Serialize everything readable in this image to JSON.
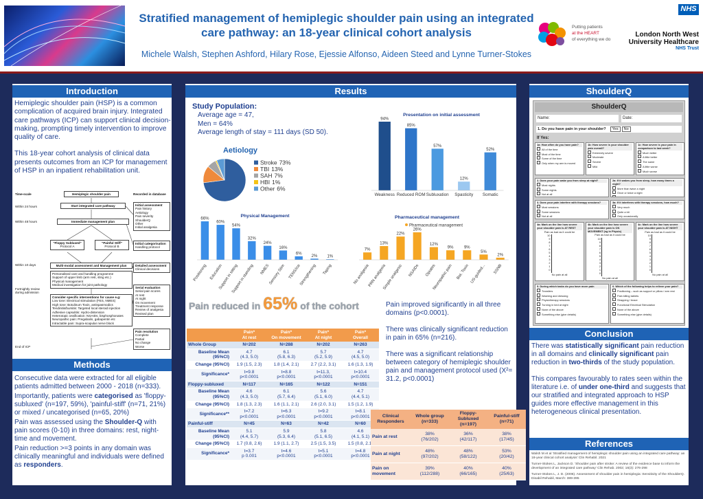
{
  "header": {
    "title": "Stratified management of hemiplegic shoulder pain using an integrated care pathway: an 18-year clinical cohort analysis",
    "authors": "Michele Walsh, Stephen Ashford, Hilary Rose, Ejessie Alfonso, Aideen Steed and Lynne Turner-Stokes",
    "logo_text": [
      "Putting patients",
      "at the HEART",
      "of everything we do"
    ],
    "nhs": "NHS",
    "trust": [
      "London North West",
      "University Healthcare",
      "NHS Trust"
    ]
  },
  "introduction": {
    "heading": "Introduction",
    "paragraphs": [
      "Hemiplegic shoulder pain (HSP) is a common complication of acquired brain injury. Integrated care pathways (ICP) can support clinical decision-making, prompting timely intervention to improve quality of care.",
      "This 18-year cohort analysis of clinical data presents outcomes from an ICP for management of HSP in an inpatient rehabilitation unit."
    ]
  },
  "flowchart": {
    "col_titles": [
      "Time-scale",
      "Recorded in database"
    ],
    "times": [
      "Within 24 hours",
      "Within 48 hours",
      "Within 10 days",
      "Fortnightly review during admission",
      "End of ICP"
    ],
    "nodes": [
      {
        "title": "Hemiplegic shoulder pain"
      },
      {
        "title": "Start integrated care pathway"
      },
      {
        "title": "Immediate management plan"
      },
      {
        "title": "\"Floppy Subluxed\"",
        "items": [
          "Protocol A"
        ]
      },
      {
        "title": "\"Painful Stiff\"",
        "items": [
          "Protocol B"
        ]
      },
      {
        "title": "Multi-modal assessment and Management plan"
      },
      {
        "items": [
          "Personalised care and handling programme",
          "Support of upper limb (arm rest, sling etc.)",
          "Physical management",
          "Medical investigation for joint pathology"
        ]
      },
      {
        "title": "Consider specific interventions for cause e.g:",
        "items": [
          "Low tone: Electrical stimulation (FES, NMES)",
          "High tone: Botulinum Toxin, antispasmodics",
          "Tendinitis/bursitis: Targeted local steroid injection",
          "Adhesive capsulitis: Hydro-distension",
          "Heterotopic ossification: NSAIDs, bisphosphonates",
          "Neuropathic pain: Pregabalin, gabapentin etc",
          "Intractable pain: Supra-scapular nerve block"
        ]
      },
      {
        "title": "Initial assessment",
        "items": [
          "Pain history",
          "Aetiology",
          "Pain severity",
          "ShoulderQ",
          "Other",
          "Initial analgesia"
        ]
      },
      {
        "title": "Initial categorisation",
        "items": [
          "Handling protocol"
        ]
      },
      {
        "title": "Detailed assessment",
        "items": [
          "Clinical decisions"
        ]
      },
      {
        "title": "Serial evaluation",
        "items": [
          "Serial pain scores",
          "At rest",
          "At night",
          "On movement",
          "Treatment response",
          "Review of analgesia",
          "Revised plan"
        ]
      },
      {
        "title": "Pain resolution",
        "items": [
          "Complete",
          "Partial",
          "No change",
          "Worse"
        ]
      }
    ]
  },
  "methods": {
    "heading": "Methods",
    "paragraphs": [
      [
        "Consecutive data were extracted for all eligible patients admitted between 2000 - 2018 (n=333)."
      ],
      [
        "Importantly,  patients were ",
        "categorised",
        " as 'floppy-subluxed' (n=197, 59%), 'painful-stiff' (n=71, 21%) or mixed / uncategorised (n=65, 20%)"
      ],
      [
        "Pain was assessed using the ",
        "Shoulder-Q",
        " with pain scores (0-10) in three domains: rest, night-time and movement."
      ],
      [
        "Pain reduction >=3 points in any domain was clinically meaningful and individuals were defined as ",
        "responders",
        "."
      ]
    ]
  },
  "results": {
    "heading": "Results",
    "population_title": "Study Population:",
    "population": [
      "Average  age = 47,",
      "Men = 64%",
      "Average length of stay = 111 days (SD 50)."
    ],
    "headline": [
      "Pain reduced  in",
      "65%",
      "of the cohort"
    ],
    "findings": [
      "Pain improved significantly in all three domains (p<0.0001).",
      "There was clinically significant reduction in pain in 65% (n=216).",
      "There was a significant relationship between category of hemiplegic shoulder pain and management protocol used (X²= 31.2, p<0.0001)"
    ]
  },
  "chart_data": [
    {
      "type": "pie",
      "title": "Aetiology",
      "categories": [
        "Stroke",
        "TBI",
        "SAH",
        "HBI",
        "Other"
      ],
      "values": [
        73,
        13,
        7,
        1,
        6
      ],
      "value_labels": [
        "73%",
        "13%",
        "7%",
        "1%",
        "6%"
      ],
      "colors": [
        "#2f5e9e",
        "#ef8a3c",
        "#a5a5a5",
        "#f4c316",
        "#5b9bd5"
      ]
    },
    {
      "type": "bar",
      "title": "Presentation on initial assessment",
      "categories": [
        "Weakness",
        "Reduced ROM",
        "Subluxation",
        "Spasticity",
        "Somatic"
      ],
      "values": [
        94,
        85,
        57,
        12,
        52
      ],
      "value_labels": [
        "94%",
        "85%",
        "57%",
        "12%",
        "52%"
      ],
      "colors": [
        "#1f4e8c",
        "#2e75c9",
        "#4b9ae0",
        "#9cc8f0",
        "#3f8ad8"
      ]
    },
    {
      "type": "bar",
      "title": "Physical Management",
      "categories": [
        "Positioning",
        "Education",
        "Support in sitting",
        "Support in standing",
        "NMES",
        "Sensory Stim",
        "TENS/ice",
        "Strengthening",
        "Taping"
      ],
      "values": [
        66,
        60,
        54,
        32,
        24,
        16,
        6,
        2,
        1
      ],
      "value_labels": [
        "66%",
        "60%",
        "54%",
        "32%",
        "24%",
        "16%",
        "6%",
        "2%",
        "1%"
      ],
      "color": "#3b8ee8"
    },
    {
      "type": "bar",
      "title": "Pharmaceutical management",
      "categories": [
        "No analgesia",
        "PRN analgesia",
        "Simple analgesic",
        "NSAIDs",
        "Opiates",
        "Neuropathic pain",
        "Bot. Toxin",
        "US-guided...",
        "SSNB"
      ],
      "series": [
        {
          "name": "Pharmaceutical management",
          "color": "#f5a623",
          "values": [
            7,
            13,
            22,
            26,
            12,
            9,
            9,
            5,
            2
          ]
        }
      ],
      "value_labels": [
        "7%",
        "13%",
        "22%",
        "26%",
        "12%",
        "9%",
        "9%",
        "5%",
        "2%"
      ]
    }
  ],
  "pain_table": {
    "header": [
      "",
      "Pain*\nAt rest",
      "Pain*\nOn movement",
      "Pain*\nAt night",
      "Pain*\nOverall"
    ],
    "rows": [
      [
        "Whole Group",
        "N=202",
        "N=288",
        "N=202",
        "N=263"
      ],
      [
        "Baseline Mean\n(95%CI)",
        "4.7\n(4.3, 5.0)",
        "6.1\n(5.8, 6.3)",
        "5.7\n(5.2, 5.9)",
        "4.7\n(4.5, 5.0)"
      ],
      [
        "Change (95%CI)",
        "1.9 (1.5, 2.3)",
        "1.8 (1.4, 2.1)",
        "2.7 (2.2, 3.1)",
        "1.6 (1.3, 1.9)"
      ],
      [
        "Significance*",
        "t=9.8\np<0.0001",
        "t=8.8\np<0.0001",
        "t=11.3,\np<0.0001",
        "t=10.4\np<0.0001"
      ],
      [
        "Floppy-subluxed",
        "N=117",
        "N=165",
        "N=122",
        "N=151"
      ],
      [
        "Baseline Mean\n(95%CI)",
        "4.6\n(4.3, 5.0)",
        "6.1\n(5.7, 6.4)",
        "5.6\n(5.1, 6.0)",
        "4.7\n(4.4, 5.1)"
      ],
      [
        "Change (95%CI)",
        "1.8 (1.3, 2.3)",
        "1.6 (1.1, 2.1)",
        "2.6 (2.0, 3.1)",
        "1.5 (1.2, 1.9)"
      ],
      [
        "Significance**",
        "t=7.2\np<0.0001",
        "t=6.3\np<0.0001",
        "t=9.2\np<0.0001",
        "t=8.1\np<0.0001"
      ],
      [
        "Painful-stiff",
        "N=45",
        "N=63",
        "N=42",
        "N=60"
      ],
      [
        "Baseline Mean\n(95%CI)",
        "5.1\n(4.4, 5.7)",
        "5.9\n(5.3, 6.4)",
        "5.8\n(5.1, 6.5)",
        "4.6\n(4.1, 5.1)"
      ],
      [
        "Change (95%CI)",
        "1.7 (0.8, 2.6)",
        "1.9 (1.1, 2.7)",
        "2.5 (1.5, 3.5)",
        "1.5 (0.8, 2.1)"
      ],
      [
        "Significance*",
        "t=3.7\np 0.001",
        "t=4.6\np<0.0001",
        "t=5.1\np<0.0001",
        "t=4.8\np<0.0001"
      ]
    ]
  },
  "responders_table": {
    "header": [
      "Clinical\nResponders",
      "Whole group\n(n=333)",
      "Floppy-\nSubluxed\n(n=197)",
      "Painful-stiff\n(n=71)"
    ],
    "rows": [
      [
        "Pain at rest",
        "38%\n(76/202)",
        "36%\n(42/117)",
        "38%\n(17/45)"
      ],
      [
        "Pain at night",
        "48%\n(97/202)",
        "48%\n(58/122)",
        "53%\n(20/42)"
      ],
      [
        "Pain on\nmovement",
        "39%\n(112/288)",
        "40%\n(66/165)",
        "40%\n(25/63)"
      ]
    ]
  },
  "shoulderq": {
    "heading": "ShoulderQ",
    "form_title": "ShoulderQ",
    "name": "Name:",
    "date": "Date:",
    "q1": "1. Do you have pain in your shoulder?",
    "yes": "Yes",
    "no": "No",
    "if_yes": "If Yes:",
    "scale_top": "Pain as bad as it could be",
    "scale_bottom": "No pain at all",
    "scale": [
      10,
      9,
      8,
      7,
      6,
      5,
      4,
      3,
      2,
      1,
      0
    ],
    "questions": [
      {
        "title": "1a: How often do you have pain?",
        "options": [
          "All of the time",
          "Most of the time",
          "Some of the time",
          "Only when my arm is moved"
        ]
      },
      {
        "title": "1b: How severe is your shoulder pain overall?",
        "options": [
          "Extremely severe",
          "Moderate",
          "Severe",
          "Mild"
        ]
      },
      {
        "title": "1c: How severe is your pain in comparison to last week?",
        "options": [
          "Much better",
          "A little better",
          "The same",
          "A little worse",
          "Much worse"
        ]
      },
      {
        "title": "2. Does your pain wake you from sleep at night?",
        "options": [
          "Most nights",
          "Some nights",
          "Not at all"
        ]
      },
      {
        "title": "2a: If it wakes you from sleep, how many times a night?",
        "options": [
          "More than twice a night",
          "Once or twice a night",
          "Only occasionally"
        ]
      },
      {
        "title": "3. Does your pain interfere with therapy sessions?",
        "options": [
          "Most sessions",
          "Some sessions",
          "Not at all"
        ]
      },
      {
        "title": "3a: If it interferes with therapy sessions, how much?",
        "options": [
          "Very much",
          "Quite a bit",
          "Only occasionally"
        ]
      },
      {
        "title": "4a: Mark on the line how severe your shoulder pain is AT REST"
      },
      {
        "title": "4b: Mark on the line how severe your shoulder pain is ON MOVEMENT (eg in Physio)"
      },
      {
        "title": "4c: Mark on the line how severe your shoulder pain is AT NIGHT"
      },
      {
        "title": "5. During which tasks do you have more pain",
        "options": [
          "Transfers",
          "Washing and dressing",
          "Physiotherapy sessions",
          "Turning in bed at night",
          "None of the above",
          "Something else (give details)"
        ]
      },
      {
        "title": "6. Which of the following helps to relieve your pain?",
        "options": [
          "Positioning – such as support or pillow / arm rest",
          "Pain killing tablets",
          "Strapping / brace",
          "Functional Electrical Stimulation",
          "None of the above",
          "Something else (give details)"
        ]
      }
    ]
  },
  "conclusion": {
    "heading": "Conclusion",
    "paragraphs": [
      [
        "There was ",
        "statistically  significant",
        "  pain reduction in all domains and ",
        "clinically significant",
        " pain reduction in ",
        "two-thirds",
        "  of the study population."
      ],
      [
        "This compares favourably to rates seen within the literature i.e. of ",
        "under one-third",
        " and suggests that our stratified and integrated approach to HSP guides more effective management in this heterogeneous clinical presentation."
      ]
    ]
  },
  "references": {
    "heading": "References",
    "items": [
      "Walsh M et al 'Stratified management of hemiplegic shoulder pain using an integrated care pathway: an 18-year clinical cohort analysis' Clin Rehabil. 2021",
      "Turner-Stokes L, Jackson D. 'Shoulder pain after stroke: A review of the evidence base to inform the development of an integrated care pathway' Clin Rehab. 2002; 16(3): 276-298",
      "Turner-Stokes L, J. D. (2006). Assessment of shoulder pain in hemiplegia: Sensitivity of the ShoulderQ. Disabil Rehabil, March: 389-395"
    ]
  }
}
